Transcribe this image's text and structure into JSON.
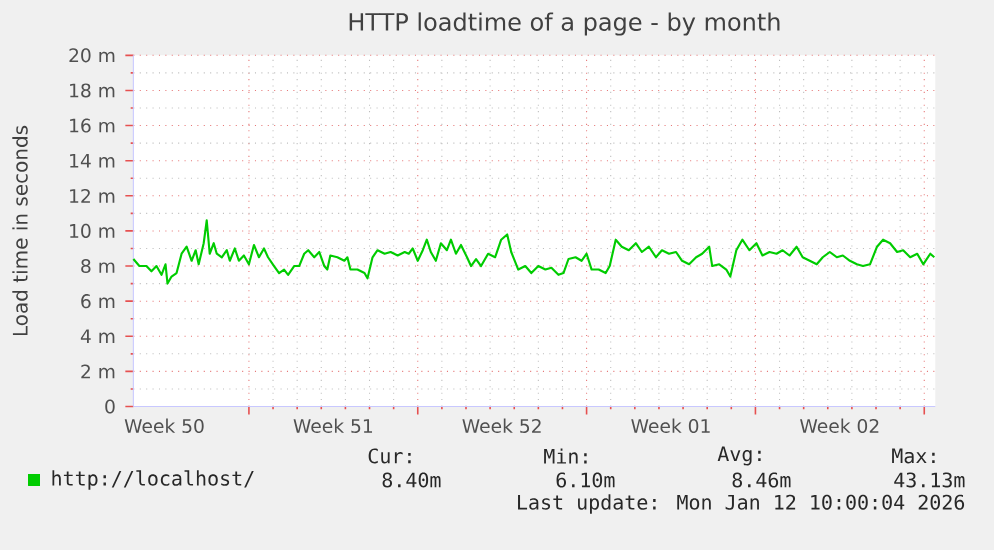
{
  "chart_data": {
    "type": "line",
    "title": "HTTP loadtime of a page - by month",
    "ylabel": "Load time in seconds",
    "xlim": [
      "2025-12-10T05:00",
      "2026-01-12T11:00"
    ],
    "xticks": [
      {
        "value": "2025-12-11T12:00",
        "label": "Week 50"
      },
      {
        "value": "2025-12-15T00:00",
        "label": null
      },
      {
        "value": "2025-12-18T12:00",
        "label": "Week 51"
      },
      {
        "value": "2025-12-22T00:00",
        "label": null
      },
      {
        "value": "2025-12-25T12:00",
        "label": "Week 52"
      },
      {
        "value": "2025-12-29T00:00",
        "label": null
      },
      {
        "value": "2026-01-01T12:00",
        "label": "Week 01"
      },
      {
        "value": "2026-01-05T00:00",
        "label": null
      },
      {
        "value": "2026-01-08T12:00",
        "label": "Week 02"
      },
      {
        "value": "2026-01-12T00:00",
        "label": null
      }
    ],
    "ylim": [
      0,
      20
    ],
    "yticks": [
      0,
      {
        "value": 2,
        "label": "2 m"
      },
      {
        "value": 4,
        "label": "4 m"
      },
      {
        "value": 6,
        "label": "6 m"
      },
      {
        "value": 8,
        "label": "8 m"
      },
      {
        "value": 10,
        "label": "10 m"
      },
      {
        "value": 12,
        "label": "12 m"
      },
      {
        "value": 14,
        "label": "14 m"
      },
      {
        "value": 16,
        "label": "16 m"
      },
      {
        "value": 18,
        "label": "18 m"
      },
      {
        "value": 20,
        "label": "20 m"
      }
    ],
    "grid": true,
    "legend": "bottom",
    "marker": "none",
    "line_style": "solid",
    "annotations": [
      "Cur:",
      "8.40m",
      "Min:",
      "6.10m",
      "Avg:",
      "8.46m",
      "Max:",
      "43.13m",
      "Last update: Mon Jan 12 10:00:04 2026"
    ],
    "x": [
      "2025-12-10T05:00",
      "2025-12-10T11:00",
      "2025-12-10T18:00",
      "2025-12-10T23:00",
      "2025-12-11T04:00",
      "2025-12-11T09:00",
      "2025-12-11T13:00",
      "2025-12-11T15:00",
      "2025-12-11T19:00",
      "2025-12-12T00:00",
      "2025-12-12T05:00",
      "2025-12-12T10:00",
      "2025-12-12T15:00",
      "2025-12-12T19:00",
      "2025-12-12T22:00",
      "2025-12-13T03:00",
      "2025-12-13T06:00",
      "2025-12-13T09:00",
      "2025-12-13T13:00",
      "2025-12-13T16:00",
      "2025-12-13T21:00",
      "2025-12-14T02:00",
      "2025-12-14T05:00",
      "2025-12-14T10:00",
      "2025-12-14T14:00",
      "2025-12-14T19:00",
      "2025-12-15T00:00",
      "2025-12-15T05:00",
      "2025-12-15T10:00",
      "2025-12-15T15:00",
      "2025-12-15T19:00",
      "2025-12-16T01:00",
      "2025-12-16T06:00",
      "2025-12-16T11:00",
      "2025-12-16T15:00",
      "2025-12-16T21:00",
      "2025-12-17T02:00",
      "2025-12-17T07:00",
      "2025-12-17T11:00",
      "2025-12-17T17:00",
      "2025-12-17T22:00",
      "2025-12-18T03:00",
      "2025-12-18T06:00",
      "2025-12-18T09:00",
      "2025-12-18T16:00",
      "2025-12-18T23:00",
      "2025-12-19T02:00",
      "2025-12-19T05:00",
      "2025-12-19T12:00",
      "2025-12-19T19:00",
      "2025-12-19T22:00",
      "2025-12-20T03:00",
      "2025-12-20T08:00",
      "2025-12-20T15:00",
      "2025-12-20T21:00",
      "2025-12-21T04:00",
      "2025-12-21T11:00",
      "2025-12-21T15:00",
      "2025-12-21T19:00",
      "2025-12-22T00:00",
      "2025-12-22T05:00",
      "2025-12-22T09:00",
      "2025-12-22T13:00",
      "2025-12-22T18:00",
      "2025-12-22T23:00",
      "2025-12-23T05:00",
      "2025-12-23T09:00",
      "2025-12-23T14:00",
      "2025-12-23T19:00",
      "2025-12-24T01:00",
      "2025-12-24T05:00",
      "2025-12-24T10:00",
      "2025-12-24T15:00",
      "2025-12-24T22:00",
      "2025-12-25T05:00",
      "2025-12-25T11:00",
      "2025-12-25T17:00",
      "2025-12-25T21:00",
      "2025-12-26T04:00",
      "2025-12-26T11:00",
      "2025-12-26T17:00",
      "2025-12-27T00:00",
      "2025-12-27T07:00",
      "2025-12-27T13:00",
      "2025-12-27T20:00",
      "2025-12-28T01:00",
      "2025-12-28T06:00",
      "2025-12-28T13:00",
      "2025-12-28T19:00",
      "2025-12-29T00:00",
      "2025-12-29T05:00",
      "2025-12-29T12:00",
      "2025-12-29T19:00",
      "2025-12-29T23:00",
      "2025-12-30T05:00",
      "2025-12-30T11:00",
      "2025-12-30T18:00",
      "2025-12-31T01:00",
      "2025-12-31T07:00",
      "2025-12-31T14:00",
      "2025-12-31T21:00",
      "2026-01-01T03:00",
      "2026-01-01T10:00",
      "2026-01-01T17:00",
      "2026-01-01T23:00",
      "2026-01-02T06:00",
      "2026-01-02T13:00",
      "2026-01-02T19:00",
      "2026-01-03T02:00",
      "2026-01-03T05:00",
      "2026-01-03T12:00",
      "2026-01-03T19:00",
      "2026-01-03T23:00",
      "2026-01-04T05:00",
      "2026-01-04T11:00",
      "2026-01-04T18:00",
      "2026-01-05T01:00",
      "2026-01-05T07:00",
      "2026-01-05T14:00",
      "2026-01-05T21:00",
      "2026-01-06T03:00",
      "2026-01-06T10:00",
      "2026-01-06T17:00",
      "2026-01-06T23:00",
      "2026-01-07T06:00",
      "2026-01-07T13:00",
      "2026-01-07T19:00",
      "2026-01-08T02:00",
      "2026-01-08T09:00",
      "2026-01-08T15:00",
      "2026-01-08T22:00",
      "2026-01-09T05:00",
      "2026-01-09T11:00",
      "2026-01-09T18:00",
      "2026-01-10T01:00",
      "2026-01-10T07:00",
      "2026-01-10T14:00",
      "2026-01-10T21:00",
      "2026-01-11T03:00",
      "2026-01-11T10:00",
      "2026-01-11T17:00",
      "2026-01-11T23:00",
      "2026-01-12T06:00",
      "2026-01-12T10:00"
    ],
    "series": [
      {
        "name": "http://localhost/",
        "color": "#00cc00",
        "values": [
          8.4,
          8.0,
          8.0,
          7.7,
          8.0,
          7.5,
          8.1,
          7.0,
          7.4,
          7.6,
          8.7,
          9.1,
          8.3,
          8.9,
          8.1,
          9.3,
          10.6,
          8.7,
          9.3,
          8.7,
          8.5,
          8.9,
          8.3,
          9.0,
          8.3,
          8.6,
          8.1,
          9.2,
          8.5,
          9.0,
          8.5,
          8.0,
          7.6,
          7.8,
          7.5,
          8.0,
          8.0,
          8.7,
          8.9,
          8.5,
          8.8,
          8.0,
          7.8,
          8.6,
          8.5,
          8.3,
          8.5,
          7.8,
          7.8,
          7.6,
          7.3,
          8.5,
          8.9,
          8.7,
          8.8,
          8.6,
          8.8,
          8.7,
          9.0,
          8.3,
          8.9,
          9.5,
          8.8,
          8.3,
          9.3,
          8.9,
          9.5,
          8.7,
          9.2,
          8.5,
          8.0,
          8.4,
          8.0,
          8.7,
          8.5,
          9.5,
          9.8,
          8.8,
          7.8,
          8.0,
          7.6,
          8.0,
          7.8,
          7.9,
          7.5,
          7.6,
          8.4,
          8.5,
          8.3,
          8.7,
          7.8,
          7.8,
          7.6,
          8.0,
          9.5,
          9.1,
          8.9,
          9.3,
          8.8,
          9.1,
          8.5,
          8.9,
          8.7,
          8.8,
          8.3,
          8.1,
          8.5,
          8.7,
          9.1,
          8.0,
          8.1,
          7.8,
          7.4,
          8.9,
          9.5,
          8.9,
          9.3,
          8.6,
          8.8,
          8.7,
          8.9,
          8.6,
          9.1,
          8.5,
          8.3,
          8.1,
          8.5,
          8.8,
          8.5,
          8.6,
          8.3,
          8.1,
          8.0,
          8.1,
          9.1,
          9.5,
          9.3,
          8.8,
          8.9,
          8.5,
          8.7,
          8.1,
          8.7,
          8.5
        ]
      }
    ]
  }
}
